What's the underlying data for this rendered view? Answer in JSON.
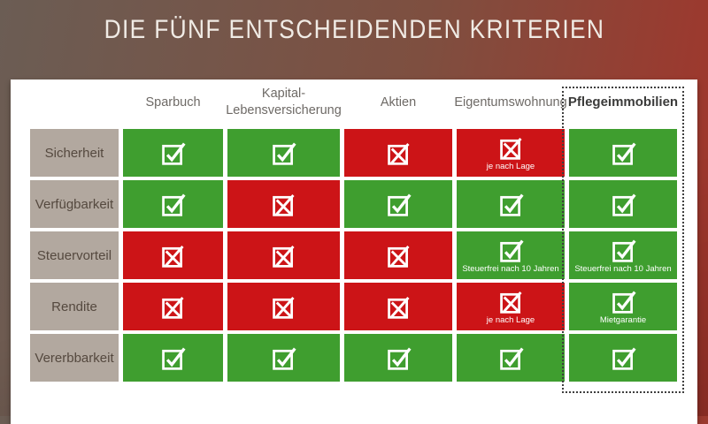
{
  "title": "DIE FÜNF ENTSCHEIDENDEN KRITERIEN",
  "colors": {
    "positive_green": "#3f9e2f",
    "negative_red": "#cc1417",
    "row_label_bg": "#b2a89f",
    "row_label_text": "#55493f",
    "header_text": "#6e6a66",
    "highlight_header_text": "#3b3b3a",
    "band_left": "#6b5d54",
    "band_right": "#a3342a",
    "panel_bg": "#ffffff",
    "title_text": "#f0ebe5"
  },
  "icons": {
    "check": "checkbox-check-icon",
    "cross": "checkbox-cross-icon"
  },
  "table": {
    "columns": [
      "Sparbuch",
      "Kapital-\nLebensversicherung",
      "Aktien",
      "Eigentumswohnung",
      "Pflegeimmobilien"
    ],
    "column_slugs": [
      "sparbuch",
      "kapital-lebensversicherung",
      "aktien",
      "eigentumswohnung",
      "pflegeimmobilien"
    ],
    "highlighted_column": "Pflegeimmobilien",
    "rows": [
      {
        "label": "Sicherheit",
        "cells": [
          {
            "state": "check"
          },
          {
            "state": "check"
          },
          {
            "state": "cross"
          },
          {
            "state": "cross",
            "note": "je nach Lage"
          },
          {
            "state": "check"
          }
        ]
      },
      {
        "label": "Verfügbarkeit",
        "cells": [
          {
            "state": "check"
          },
          {
            "state": "cross"
          },
          {
            "state": "check"
          },
          {
            "state": "check"
          },
          {
            "state": "check"
          }
        ]
      },
      {
        "label": "Steuervorteil",
        "cells": [
          {
            "state": "cross"
          },
          {
            "state": "cross"
          },
          {
            "state": "cross"
          },
          {
            "state": "check",
            "note": "Steuerfrei nach 10 Jahren"
          },
          {
            "state": "check",
            "note": "Steuerfrei nach 10 Jahren"
          }
        ]
      },
      {
        "label": "Rendite",
        "cells": [
          {
            "state": "cross"
          },
          {
            "state": "cross"
          },
          {
            "state": "cross"
          },
          {
            "state": "cross",
            "note": "je nach Lage"
          },
          {
            "state": "check",
            "note": "Mietgarantie"
          }
        ]
      },
      {
        "label": "Vererbbarkeit",
        "cells": [
          {
            "state": "check"
          },
          {
            "state": "check"
          },
          {
            "state": "check"
          },
          {
            "state": "check"
          },
          {
            "state": "check"
          }
        ]
      }
    ]
  }
}
